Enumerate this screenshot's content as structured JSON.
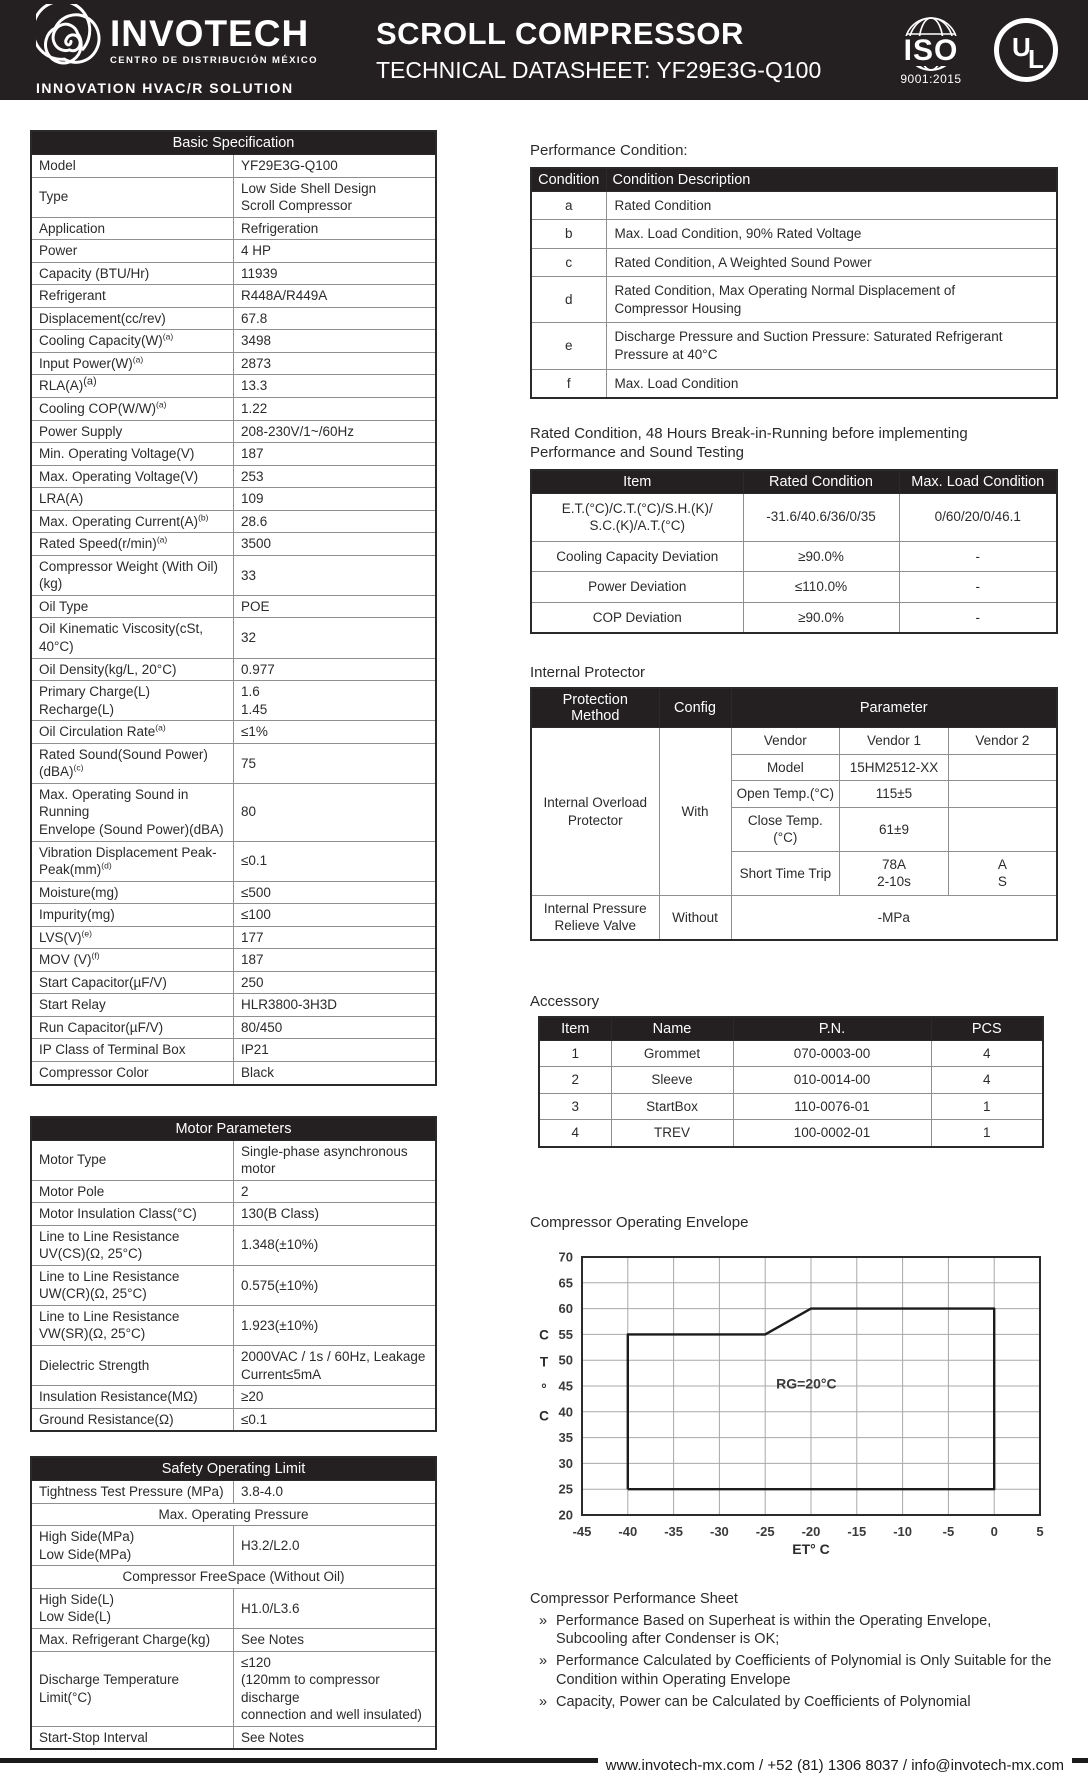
{
  "header": {
    "brand": "INVOTECH",
    "tagline1": "CENTRO DE DISTRIBUCIÓN MÉXICO",
    "tagline2": "INNOVATION HVAC/R SOLUTION",
    "title": "SCROLL COMPRESSOR",
    "subtitle": "TECHNICAL DATASHEET: YF29E3G-Q100",
    "iso_top": "ISO",
    "iso_sub": "9001:2015",
    "ul_u": "U",
    "ul_l": "L",
    "bar_color": "#242021"
  },
  "basic_spec": {
    "title": "Basic Specification",
    "rows": [
      {
        "label": "Model",
        "value": "YF29E3G-Q100"
      },
      {
        "label": "Type",
        "value": "Low Side Shell Design\nScroll Compressor"
      },
      {
        "label": "Application",
        "value": "Refrigeration"
      },
      {
        "label": "Power",
        "value": "4 HP"
      },
      {
        "label": "Capacity (BTU/Hr)",
        "value": "11939"
      },
      {
        "label": "Refrigerant",
        "value": "R448A/R449A"
      },
      {
        "label": "Displacement(cc/rev)",
        "value": "67.8"
      },
      {
        "label": "Cooling Capacity(W)^(a)",
        "value": "3498"
      },
      {
        "label": "Input Power(W)^(a)",
        "value": "2873"
      },
      {
        "label": "RLA(A)^^(a)",
        "value": "13.3"
      },
      {
        "label": "Cooling COP(W/W)^(a)",
        "value": "1.22"
      },
      {
        "label": "Power Supply",
        "value": "208-230V/1~/60Hz"
      },
      {
        "label": "Min. Operating Voltage(V)",
        "value": "187"
      },
      {
        "label": "Max. Operating Voltage(V)",
        "value": "253"
      },
      {
        "label": "LRA(A)",
        "value": "109"
      },
      {
        "label": "Max. Operating Current(A)^(b)",
        "value": "28.6"
      },
      {
        "label": "Rated Speed(r/min)^(a)",
        "value": "3500"
      },
      {
        "label": "Compressor Weight (With Oil)(kg)",
        "value": "33"
      },
      {
        "label": "Oil Type",
        "value": "POE"
      },
      {
        "label": "Oil Kinematic Viscosity(cSt, 40°C)",
        "value": "32"
      },
      {
        "label": "Oil Density(kg/L, 20°C)",
        "value": "0.977"
      },
      {
        "label": "Primary Charge(L)\nRecharge(L)",
        "value": "1.6\n1.45"
      },
      {
        "label": "Oil Circulation Rate^(a)",
        "value": "≤1%"
      },
      {
        "label": "Rated Sound(Sound Power)(dBA)^(c)",
        "value": "75"
      },
      {
        "label": "Max. Operating Sound in Running\nEnvelope (Sound Power)(dBA)",
        "value": "80"
      },
      {
        "label": "Vibration Displacement Peak-Peak(mm)^(d)",
        "value": "≤0.1"
      },
      {
        "label": "Moisture(mg)",
        "value": "≤500"
      },
      {
        "label": "Impurity(mg)",
        "value": "≤100"
      },
      {
        "label": "LVS(V)^(e)",
        "value": "177"
      },
      {
        "label": "MOV (V)^(f)",
        "value": "187"
      },
      {
        "label": "Start Capacitor(µF/V)",
        "value": "250"
      },
      {
        "label": "Start Relay",
        "value": "HLR3800-3H3D"
      },
      {
        "label": "Run Capacitor(µF/V)",
        "value": "80/450"
      },
      {
        "label": "IP Class of Terminal Box",
        "value": "IP21"
      },
      {
        "label": "Compressor Color",
        "value": "Black"
      }
    ]
  },
  "motor": {
    "title": "Motor Parameters",
    "rows": [
      {
        "label": "Motor Type",
        "value": "Single-phase asynchronous motor"
      },
      {
        "label": "Motor Pole",
        "value": "2"
      },
      {
        "label": "Motor Insulation Class(°C)",
        "value": "130(B Class)"
      },
      {
        "label": "Line to Line Resistance\nUV(CS)(Ω, 25°C)",
        "value": "1.348(±10%)"
      },
      {
        "label": "Line to Line Resistance\nUW(CR)(Ω, 25°C)",
        "value": "0.575(±10%)"
      },
      {
        "label": "Line to Line Resistance\nVW(SR)(Ω, 25°C)",
        "value": "1.923(±10%)"
      },
      {
        "label": "Dielectric Strength",
        "value": "2000VAC / 1s / 60Hz, Leakage\nCurrent≤5mA"
      },
      {
        "label": "Insulation Resistance(MΩ)",
        "value": "≥20"
      },
      {
        "label": "Ground Resistance(Ω)",
        "value": "≤0.1"
      }
    ]
  },
  "safety": {
    "title": "Safety Operating Limit",
    "row_tightness": {
      "label": "Tightness Test Pressure (MPa)",
      "value": "3.8-4.0"
    },
    "section1": "Max. Operating Pressure",
    "row_pressure": {
      "label": "High Side(MPa)\nLow Side(MPa)",
      "value": "H3.2/L2.0"
    },
    "section2": "Compressor FreeSpace (Without Oil)",
    "row_freespace": {
      "label": "High Side(L)\nLow Side(L)",
      "value": "H1.0/L3.6"
    },
    "row_charge": {
      "label": "Max. Refrigerant Charge(kg)",
      "value": "See Notes"
    },
    "row_discharge": {
      "label": "Discharge Temperature Limit(°C)",
      "value": "≤120\n(120mm to compressor discharge\nconnection and well insulated)"
    },
    "row_interval": {
      "label": "Start-Stop Interval",
      "value": "See Notes"
    }
  },
  "performance_condition": {
    "title": "Performance Condition:",
    "headers": {
      "cond": "Condition",
      "desc": "Condition Description"
    },
    "rows": [
      {
        "cond": "a",
        "desc": "Rated Condition"
      },
      {
        "cond": "b",
        "desc": "Max. Load Condition, 90% Rated Voltage"
      },
      {
        "cond": "c",
        "desc": "Rated Condition, A Weighted Sound Power"
      },
      {
        "cond": "d",
        "desc": "Rated Condition, Max Operating Normal Displacement of\nCompressor Housing"
      },
      {
        "cond": "e",
        "desc": "Discharge Pressure and Suction Pressure: Saturated Refrigerant\nPressure at 40°C"
      },
      {
        "cond": "f",
        "desc": "Max. Load Condition"
      }
    ]
  },
  "rated_condition": {
    "caption": "Rated Condition, 48 Hours Break-in-Running before implementing\nPerformance and Sound Testing",
    "headers": {
      "item": "Item",
      "rated": "Rated Condition",
      "max": "Max. Load Condition"
    },
    "rows": [
      {
        "item": "E.T.(°C)/C.T.(°C)/S.H.(K)/\nS.C.(K)/A.T.(°C)",
        "rated": "-31.6/40.6/36/0/35",
        "max": "0/60/20/0/46.1"
      },
      {
        "item": "Cooling Capacity Deviation",
        "rated": "≥90.0%",
        "max": "-"
      },
      {
        "item": "Power Deviation",
        "rated": "≤110.0%",
        "max": "-"
      },
      {
        "item": "COP Deviation",
        "rated": "≥90.0%",
        "max": "-"
      }
    ]
  },
  "internal_protector": {
    "title": "Internal Protector",
    "headers": {
      "method": "Protection Method",
      "config": "Config",
      "parameter": "Parameter"
    },
    "overload": {
      "method": "Internal Overload\nProtector",
      "config": "With",
      "rows": [
        {
          "name": "Vendor",
          "v1": "Vendor 1",
          "v2": "Vendor 2"
        },
        {
          "name": "Model",
          "v1": "15HM2512-XX",
          "v2": ""
        },
        {
          "name": "Open Temp.(°C)",
          "v1": "115±5",
          "v2": ""
        },
        {
          "name": "Close Temp. (°C)",
          "v1": "61±9",
          "v2": ""
        },
        {
          "name": "Short Time Trip",
          "v1": "78A\n2-10s",
          "v2": "A\nS"
        }
      ]
    },
    "relieve": {
      "method": "Internal Pressure\nRelieve Valve",
      "config": "Without",
      "value": "-MPa"
    }
  },
  "accessory": {
    "title": "Accessory",
    "headers": {
      "item": "Item",
      "name": "Name",
      "pn": "P.N.",
      "pcs": "PCS"
    },
    "rows": [
      {
        "item": "1",
        "name": "Grommet",
        "pn": "070-0003-00",
        "pcs": "4"
      },
      {
        "item": "2",
        "name": "Sleeve",
        "pn": "010-0014-00",
        "pcs": "4"
      },
      {
        "item": "3",
        "name": "StartBox",
        "pn": "110-0076-01",
        "pcs": "1"
      },
      {
        "item": "4",
        "name": "TREV",
        "pn": "100-0002-01",
        "pcs": "1"
      }
    ]
  },
  "chart_data": {
    "type": "line",
    "title": "Compressor Operating Envelope",
    "xlabel": "ET° C",
    "ylabel": "CT°C",
    "ylabel_chars": [
      "C",
      "T",
      "°",
      "C"
    ],
    "xlim": [
      -45,
      5
    ],
    "ylim": [
      20,
      70
    ],
    "x_ticks": [
      -45,
      -40,
      -35,
      -30,
      -25,
      -20,
      -15,
      -10,
      -5,
      0,
      5
    ],
    "y_ticks": [
      70,
      65,
      60,
      55,
      50,
      45,
      40,
      35,
      30,
      25,
      20
    ],
    "grid": true,
    "series": [
      {
        "name": "operating-envelope",
        "points": [
          [
            -40,
            25
          ],
          [
            -40,
            55
          ],
          [
            -25,
            55
          ],
          [
            -20,
            60
          ],
          [
            0,
            60
          ],
          [
            0,
            25
          ],
          [
            -40,
            25
          ]
        ]
      }
    ],
    "annotation": {
      "text": "RG=20°C",
      "x": -20.5,
      "y": 44.5
    }
  },
  "performance_sheet": {
    "title": "Compressor Performance Sheet",
    "marker": "»",
    "bullets": [
      "Performance Based on Superheat is within the Operating Envelope,\nSubcooling after Condenser is OK;",
      "Performance Calculated by Coefficients of Polynomial is Only Suitable for the\nCondition within Operating Envelope",
      "Capacity, Power can be Calculated by Coefficients of Polynomial"
    ]
  },
  "footer": {
    "contact": "www.invotech-mx.com / +52 (81) 1306 8037 / info@invotech-mx.com"
  }
}
